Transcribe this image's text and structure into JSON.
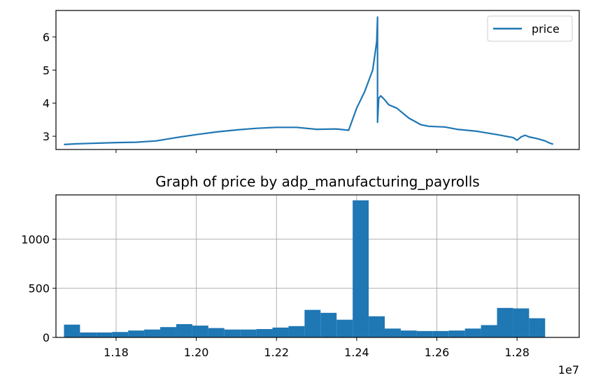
{
  "chart_data": [
    {
      "type": "line",
      "title": "",
      "xlabel": "",
      "ylabel": "",
      "ylim": [
        2.6,
        6.8
      ],
      "xlim": [
        11650000,
        12955000
      ],
      "yticks": [
        3,
        4,
        5,
        6
      ],
      "xticks": [
        11800000,
        12000000,
        12200000,
        12400000,
        12600000,
        12800000
      ],
      "show_xtick_labels": false,
      "grid": false,
      "legend": {
        "position": "top-right",
        "entries": [
          "price"
        ]
      },
      "series": [
        {
          "name": "price",
          "color": "#1f77b4",
          "x": [
            11670000,
            11700000,
            11750000,
            11800000,
            11850000,
            11900000,
            11950000,
            12000000,
            12050000,
            12100000,
            12150000,
            12200000,
            12250000,
            12300000,
            12350000,
            12380000,
            12400000,
            12420000,
            12440000,
            12450000,
            12452000,
            12452000,
            12455000,
            12460000,
            12470000,
            12480000,
            12500000,
            12530000,
            12560000,
            12580000,
            12600000,
            12620000,
            12650000,
            12700000,
            12750000,
            12790000,
            12800000,
            12810000,
            12820000,
            12830000,
            12850000,
            12870000,
            12880000,
            12890000
          ],
          "y": [
            2.75,
            2.77,
            2.79,
            2.81,
            2.82,
            2.86,
            2.96,
            3.05,
            3.13,
            3.19,
            3.24,
            3.27,
            3.27,
            3.21,
            3.22,
            3.18,
            3.85,
            4.35,
            5.0,
            5.85,
            6.6,
            3.42,
            4.15,
            4.22,
            4.1,
            3.95,
            3.85,
            3.55,
            3.35,
            3.3,
            3.29,
            3.28,
            3.21,
            3.15,
            3.05,
            2.96,
            2.88,
            2.98,
            3.03,
            2.98,
            2.93,
            2.86,
            2.8,
            2.76
          ]
        }
      ]
    },
    {
      "type": "bar",
      "title": "Graph of price by adp_manufacturing_payrolls",
      "xlabel": "",
      "ylabel": "",
      "offset_label": "1e7",
      "xlim": [
        11650000,
        12955000
      ],
      "ylim": [
        0,
        1450
      ],
      "yticks": [
        0,
        500,
        1000
      ],
      "xticks": [
        11800000,
        12000000,
        12200000,
        12400000,
        12600000,
        12800000
      ],
      "xtick_labels": [
        "1.18",
        "1.20",
        "1.22",
        "1.24",
        "1.26",
        "1.28"
      ],
      "grid": true,
      "color": "#1f77b4",
      "bin_start": 11670000,
      "bin_width": 40000,
      "values": [
        130,
        50,
        50,
        55,
        70,
        80,
        105,
        135,
        120,
        95,
        80,
        80,
        85,
        100,
        115,
        280,
        250,
        180,
        1395,
        215,
        90,
        70,
        65,
        65,
        70,
        90,
        125,
        300,
        295,
        195
      ]
    }
  ]
}
